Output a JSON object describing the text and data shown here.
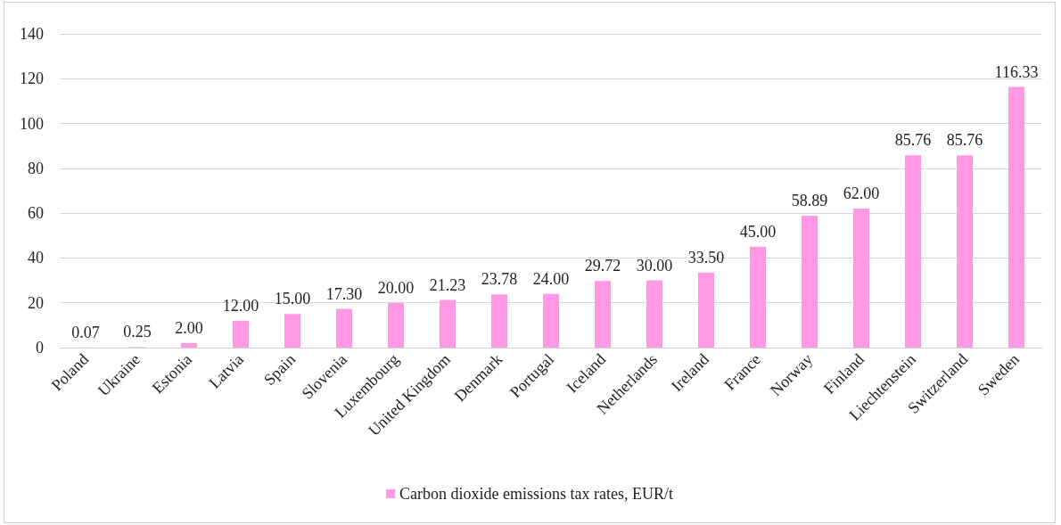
{
  "chart_data": {
    "type": "bar",
    "categories": [
      "Poland",
      "Ukraine",
      "Estonia",
      "Latvia",
      "Spain",
      "Slovenia",
      "Luxembourg",
      "United Kingdom",
      "Denmark",
      "Portugal",
      "Iceland",
      "Netherlands",
      "Ireland",
      "France",
      "Norway",
      "Finland",
      "Liechtenstein",
      "Switzerland",
      "Sweden"
    ],
    "series": [
      {
        "name": "Carbon dioxide emissions tax rates, EUR/t",
        "color": "#ff99e6",
        "values": [
          0.07,
          0.25,
          2,
          12,
          15,
          17.3,
          20,
          21.23,
          23.78,
          24,
          29.72,
          30,
          33.5,
          45,
          58.89,
          62,
          85.76,
          85.76,
          116.33
        ],
        "value_labels": [
          "0.07",
          "0.25",
          "2.00",
          "12.00",
          "15.00",
          "17.30",
          "20.00",
          "21.23",
          "23.78",
          "24.00",
          "29.72",
          "30.00",
          "33.50",
          "45.00",
          "58.89",
          "62.00",
          "85.76",
          "85.76",
          "116.33"
        ]
      }
    ],
    "ylim": [
      0,
      140
    ],
    "yticks": [
      0,
      20,
      40,
      60,
      80,
      100,
      120,
      140
    ],
    "grid": "y",
    "legend": "bottom"
  }
}
